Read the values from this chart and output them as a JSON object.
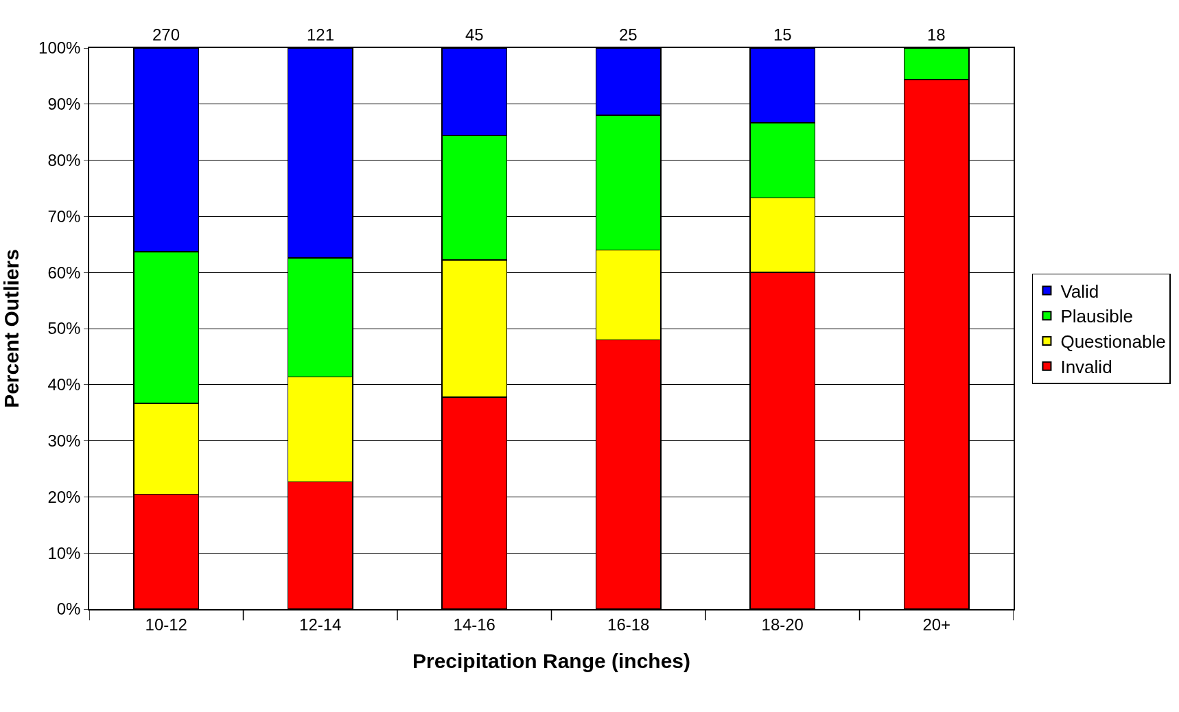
{
  "chart_data": {
    "type": "bar",
    "stacked": true,
    "xlabel": "Precipitation Range (inches)",
    "ylabel": "Percent Outliers",
    "categories": [
      "10-12",
      "12-14",
      "14-16",
      "16-18",
      "18-20",
      "20+"
    ],
    "series": [
      {
        "name": "Invalid",
        "color": "#ff0000",
        "values": [
          20.5,
          22.7,
          37.8,
          48,
          60,
          94.4
        ]
      },
      {
        "name": "Questionable",
        "color": "#ffff00",
        "values": [
          16.2,
          18.7,
          24.4,
          16,
          13.3,
          null
        ]
      },
      {
        "name": "Plausible",
        "color": "#00ff00",
        "values": [
          27,
          21.2,
          22.2,
          24,
          13.4,
          5.6
        ]
      },
      {
        "name": "Valid",
        "color": "#0000ff",
        "values": [
          36.3,
          37.4,
          15.6,
          12,
          13.3,
          null
        ]
      }
    ],
    "ylim": [
      0,
      100
    ],
    "yticks": [
      {
        "value": 0,
        "label": "0%"
      },
      {
        "value": 10,
        "label": "10%"
      },
      {
        "value": 20,
        "label": "20%"
      },
      {
        "value": 30,
        "label": "30%"
      },
      {
        "value": 40,
        "label": "40%"
      },
      {
        "value": 50,
        "label": "50%"
      },
      {
        "value": 60,
        "label": "60%"
      },
      {
        "value": 70,
        "label": "70%"
      },
      {
        "value": 80,
        "label": "80%"
      },
      {
        "value": 90,
        "label": "90%"
      },
      {
        "value": 100,
        "label": "100%"
      }
    ],
    "annotations": [
      {
        "text": "270",
        "x": "10-12",
        "y": 100
      },
      {
        "text": "121",
        "x": "12-14",
        "y": 100
      },
      {
        "text": "45",
        "x": "14-16",
        "y": 100
      },
      {
        "text": "25",
        "x": "16-18",
        "y": 100
      },
      {
        "text": "15",
        "x": "18-20",
        "y": 100
      },
      {
        "text": "18",
        "x": "20+",
        "y": 100
      }
    ],
    "grid": "y",
    "legend": "right"
  }
}
